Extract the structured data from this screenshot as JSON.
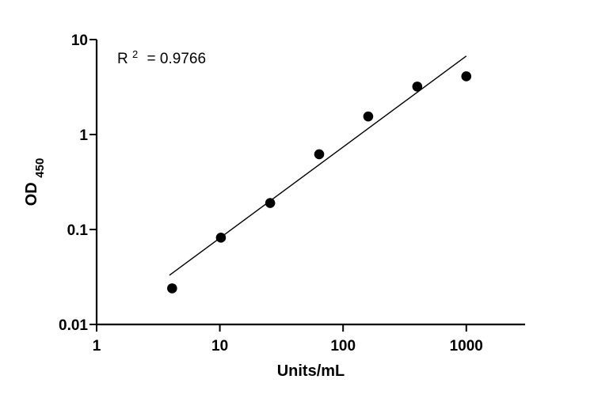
{
  "chart_data": {
    "type": "scatter",
    "title": "",
    "xlabel": "Units/mL",
    "ylabel_main": "OD",
    "ylabel_sub": "450",
    "x_scale": "log",
    "y_scale": "log",
    "xlim": [
      1,
      3000
    ],
    "ylim": [
      0.01,
      10
    ],
    "x_ticks": [
      {
        "value": 1,
        "label": "1"
      },
      {
        "value": 10,
        "label": "10"
      },
      {
        "value": 100,
        "label": "100"
      },
      {
        "value": 1000,
        "label": "1000"
      }
    ],
    "y_ticks": [
      {
        "value": 0.01,
        "label": "0.01"
      },
      {
        "value": 0.1,
        "label": "0.1"
      },
      {
        "value": 1,
        "label": "1"
      },
      {
        "value": 10,
        "label": "10"
      }
    ],
    "grid": false,
    "legend": "none",
    "annotation": {
      "r_prefix": "R",
      "r_exponent": "2",
      "r_value": "= 0.9766"
    },
    "points": [
      {
        "x": 4.1,
        "y": 0.024
      },
      {
        "x": 10.2,
        "y": 0.082
      },
      {
        "x": 25.6,
        "y": 0.19
      },
      {
        "x": 64,
        "y": 0.62
      },
      {
        "x": 160,
        "y": 1.55
      },
      {
        "x": 400,
        "y": 3.2
      },
      {
        "x": 1000,
        "y": 4.1
      }
    ],
    "fit_line": {
      "x_start": 3.9,
      "y_start": 0.033,
      "x_end": 1000,
      "y_end": 6.7
    },
    "colors": {
      "axis": "#000000",
      "points": "#000000",
      "fit": "#000000"
    }
  }
}
